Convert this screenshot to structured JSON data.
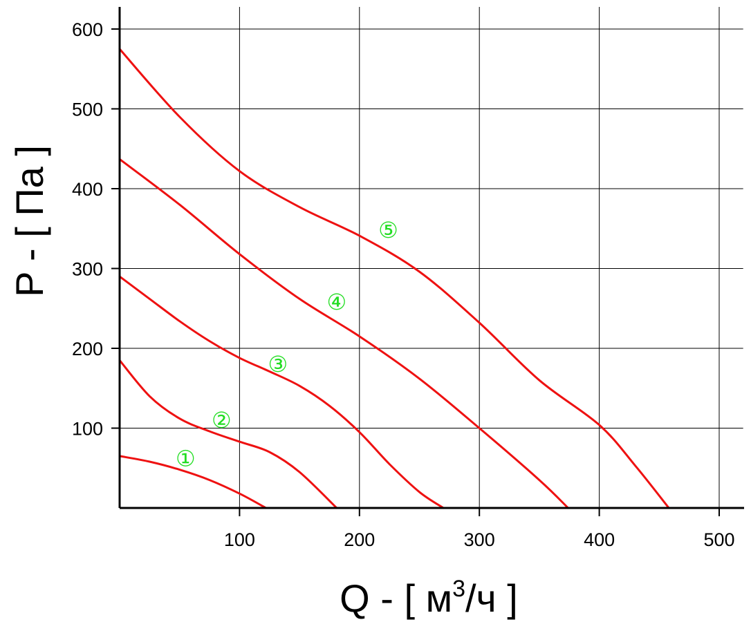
{
  "chart_data": {
    "type": "line",
    "xlabel": {
      "main": "Q - [ м",
      "sup": "3",
      "tail": "/ч ]"
    },
    "ylabel": "P - [ Па ]",
    "xlim": [
      0,
      520
    ],
    "ylim": [
      0,
      600
    ],
    "x_ticks": [
      "100",
      "200",
      "300",
      "400",
      "500"
    ],
    "y_ticks": [
      "100",
      "200",
      "300",
      "400",
      "500",
      "600"
    ],
    "grid": true,
    "colors": {
      "curve": "#ee1111",
      "label": "#22dd22",
      "grid": "#000000"
    },
    "series": [
      {
        "label": "①",
        "label_at": [
          55,
          62
        ],
        "points": [
          [
            0,
            65
          ],
          [
            25,
            58
          ],
          [
            50,
            48
          ],
          [
            75,
            35
          ],
          [
            100,
            18
          ],
          [
            122,
            0
          ]
        ]
      },
      {
        "label": "②",
        "label_at": [
          85,
          110
        ],
        "points": [
          [
            0,
            185
          ],
          [
            25,
            140
          ],
          [
            50,
            112
          ],
          [
            75,
            96
          ],
          [
            100,
            83
          ],
          [
            125,
            70
          ],
          [
            150,
            45
          ],
          [
            181,
            0
          ]
        ]
      },
      {
        "label": "③",
        "label_at": [
          132,
          180
        ],
        "points": [
          [
            0,
            290
          ],
          [
            25,
            262
          ],
          [
            50,
            234
          ],
          [
            75,
            209
          ],
          [
            100,
            188
          ],
          [
            125,
            171
          ],
          [
            150,
            153
          ],
          [
            175,
            128
          ],
          [
            200,
            95
          ],
          [
            225,
            55
          ],
          [
            250,
            20
          ],
          [
            270,
            0
          ]
        ]
      },
      {
        "label": "④",
        "label_at": [
          181,
          258
        ],
        "points": [
          [
            0,
            437
          ],
          [
            50,
            380
          ],
          [
            100,
            318
          ],
          [
            150,
            262
          ],
          [
            200,
            215
          ],
          [
            250,
            162
          ],
          [
            300,
            100
          ],
          [
            350,
            35
          ],
          [
            374,
            0
          ]
        ]
      },
      {
        "label": "⑤",
        "label_at": [
          224,
          348
        ],
        "points": [
          [
            0,
            575
          ],
          [
            50,
            490
          ],
          [
            100,
            422
          ],
          [
            150,
            377
          ],
          [
            200,
            341
          ],
          [
            250,
            296
          ],
          [
            300,
            232
          ],
          [
            350,
            160
          ],
          [
            400,
            104
          ],
          [
            430,
            53
          ],
          [
            458,
            0
          ]
        ]
      }
    ]
  }
}
